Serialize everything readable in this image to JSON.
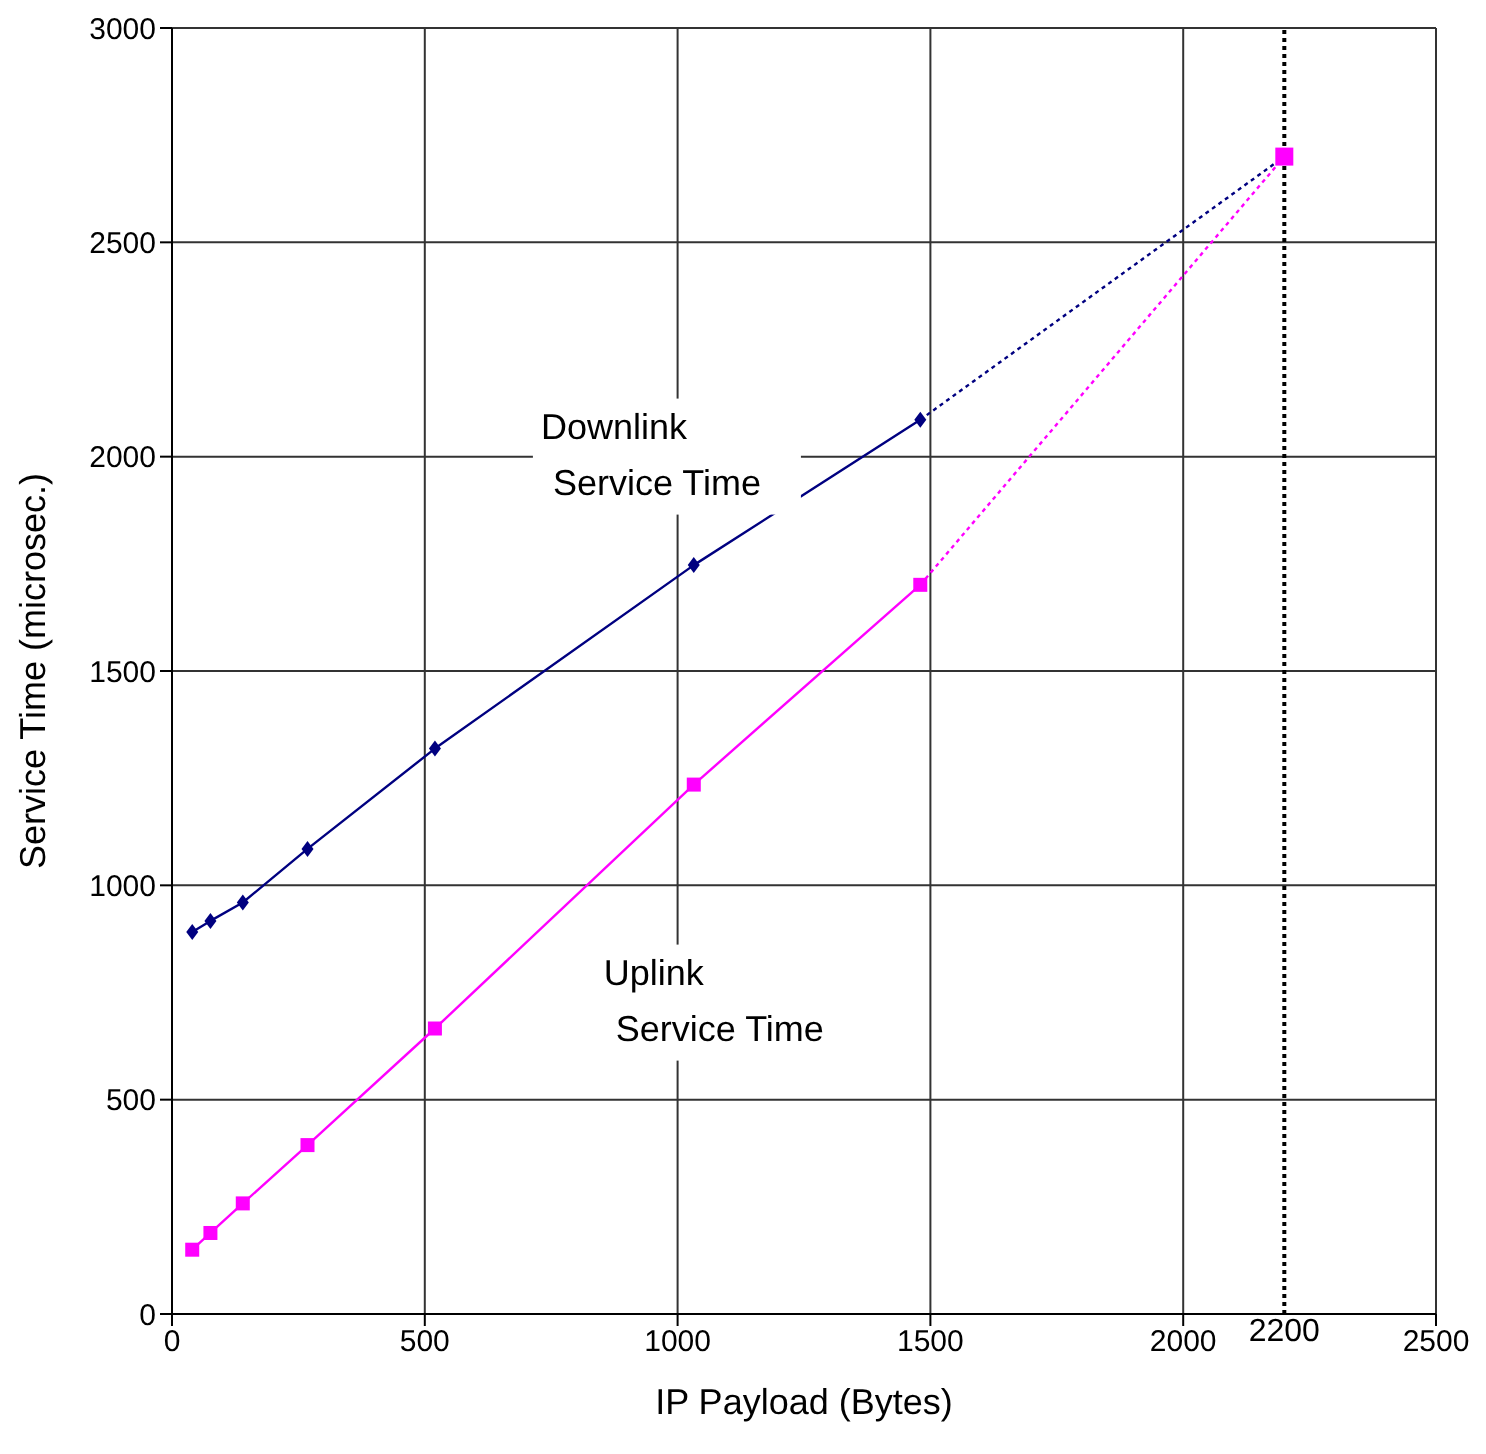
{
  "chart_data": {
    "type": "line",
    "xlabel": "IP Payload (Bytes)",
    "ylabel": "Service Time (microsec.)",
    "xlim": [
      0,
      2500
    ],
    "xticks": [
      0,
      500,
      1000,
      1500,
      2000,
      2500
    ],
    "ylim": [
      0,
      3000
    ],
    "yticks": [
      0,
      500,
      1000,
      1500,
      2000,
      2500,
      3000
    ],
    "grid": true,
    "series": [
      {
        "name": "Downlink Service Time",
        "color": "#000080",
        "marker": "diamond",
        "line_style": "solid",
        "x": [
          40,
          76,
          140,
          268,
          520,
          1032,
          1480
        ],
        "values": [
          891,
          917,
          960,
          1085,
          1319,
          1747,
          2086
        ]
      },
      {
        "name": "Uplink Service Time",
        "color": "#ff00ff",
        "marker": "square",
        "line_style": "solid",
        "x": [
          40,
          76,
          140,
          268,
          520,
          1032,
          1480
        ],
        "values": [
          150,
          189,
          258,
          394,
          666,
          1235,
          1701
        ]
      },
      {
        "color": "#000080",
        "marker": "none",
        "line_style": "dotted",
        "x": [
          1480,
          2200
        ],
        "values": [
          2086,
          2700
        ]
      },
      {
        "color": "#ff00ff",
        "marker": "none",
        "line_style": "dotted",
        "x": [
          1480,
          2200
        ],
        "values": [
          1701,
          2700
        ]
      },
      {
        "type": "scatter",
        "color": "#ff00ff",
        "marker": "square",
        "x": [
          2200
        ],
        "values": [
          2700
        ]
      }
    ],
    "ref_lines": [
      {
        "axis": "x",
        "value": 2200,
        "label": "2200",
        "color": "#000000",
        "line_style": "dotted"
      }
    ]
  }
}
